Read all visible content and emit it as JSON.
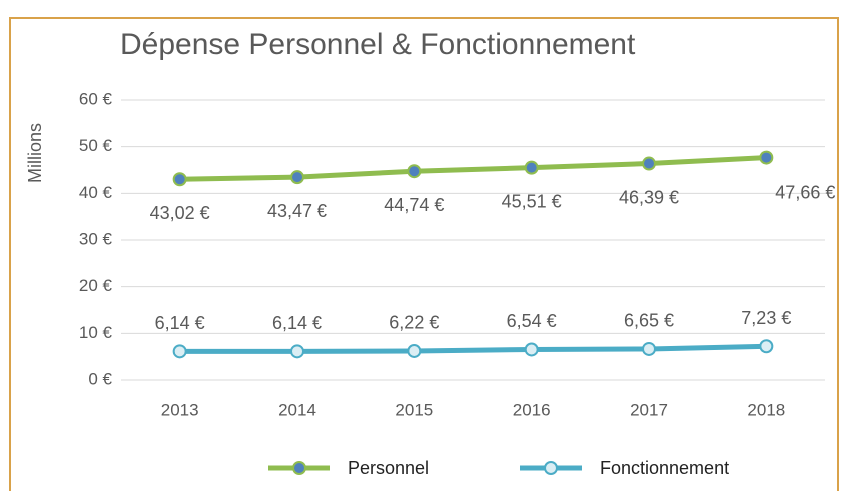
{
  "chart_data": {
    "type": "line",
    "title": "Dépense Personnel & Fonctionnement",
    "y_label": "Millions",
    "categories": [
      "2013",
      "2014",
      "2015",
      "2016",
      "2017",
      "2018"
    ],
    "series": [
      {
        "name": "Personnel",
        "color": "#8fbc4f",
        "marker_color": "#4f81bd",
        "values": [
          43.02,
          43.47,
          44.74,
          45.51,
          46.39,
          47.66
        ],
        "value_labels": [
          "43,02 €",
          "43,47 €",
          "44,74 €",
          "45,51 €",
          "46,39 €",
          "47,66 €"
        ]
      },
      {
        "name": "Fonctionnement",
        "color": "#4bacc6",
        "marker_color": "#dbeef4",
        "values": [
          6.14,
          6.14,
          6.22,
          6.54,
          6.65,
          7.23
        ],
        "value_labels": [
          "6,14 €",
          "6,14 €",
          "6,22 €",
          "6,54 €",
          "6,65 €",
          "7,23 €"
        ]
      }
    ],
    "ylim": [
      0,
      60
    ],
    "yticks": [
      {
        "value": 0,
        "label": "0 €"
      },
      {
        "value": 10,
        "label": "10 €"
      },
      {
        "value": 20,
        "label": "20 €"
      },
      {
        "value": 30,
        "label": "30 €"
      },
      {
        "value": 40,
        "label": "40 €"
      },
      {
        "value": 50,
        "label": "50 €"
      },
      {
        "value": 60,
        "label": "60 €"
      }
    ],
    "grid": true,
    "legend": "bottom"
  }
}
